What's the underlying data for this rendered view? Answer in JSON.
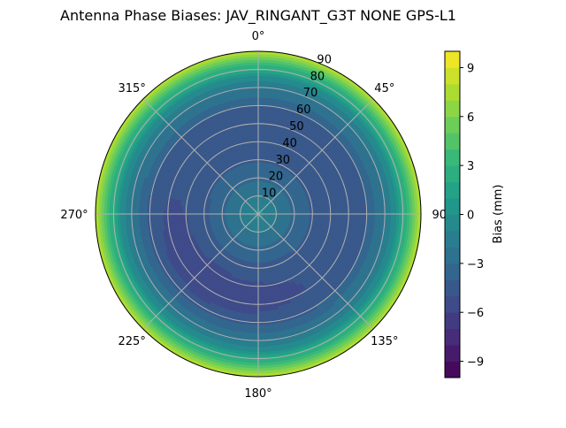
{
  "chart_data": {
    "type": "heatmap",
    "subtype": "polar-filled-contour",
    "title": "Antenna Phase Biases: JAV_RINGANT_G3T NONE GPS-L1",
    "colormap": "viridis",
    "theta_zero": "top",
    "theta_direction": "clockwise",
    "theta_ticks": [
      "0°",
      "45°",
      "90°",
      "135°",
      "180°",
      "225°",
      "270°",
      "315°"
    ],
    "r_ticks": [
      "10",
      "20",
      "30",
      "40",
      "50",
      "60",
      "70",
      "80",
      "90"
    ],
    "rlim": [
      0,
      90
    ],
    "grid": true,
    "colorbar": {
      "label": "Bias (mm)",
      "range": [
        -10,
        10
      ],
      "levels_step": 1,
      "ticks": [
        "−9",
        "−6",
        "−3",
        "0",
        "3",
        "6",
        "9"
      ],
      "tick_values": [
        -9,
        -6,
        -3,
        0,
        3,
        6,
        9
      ],
      "placement": "right"
    },
    "radial_profile": {
      "zenith_deg": [
        0,
        10,
        20,
        30,
        40,
        50,
        60,
        65,
        70,
        75,
        80,
        85,
        90
      ],
      "bias_mm": [
        -0.5,
        -2,
        -3.2,
        -4.2,
        -4.6,
        -4.6,
        -4,
        -3,
        -2,
        -0.5,
        2,
        4.5,
        8.5
      ]
    },
    "local_minimum": {
      "azimuth_deg": 215,
      "zenith_deg": 48,
      "bias_mm": -5.8
    }
  }
}
